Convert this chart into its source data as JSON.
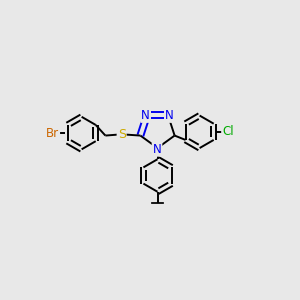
{
  "bg_color": "#e8e8e8",
  "bond_color": "#000000",
  "N_color": "#0000ee",
  "S_color": "#ccaa00",
  "Br_color": "#cc6600",
  "Cl_color": "#00aa00",
  "line_width": 1.4,
  "figsize": [
    3.0,
    3.0
  ],
  "dpi": 100,
  "xlim": [
    0,
    12
  ],
  "ylim": [
    0,
    12
  ]
}
